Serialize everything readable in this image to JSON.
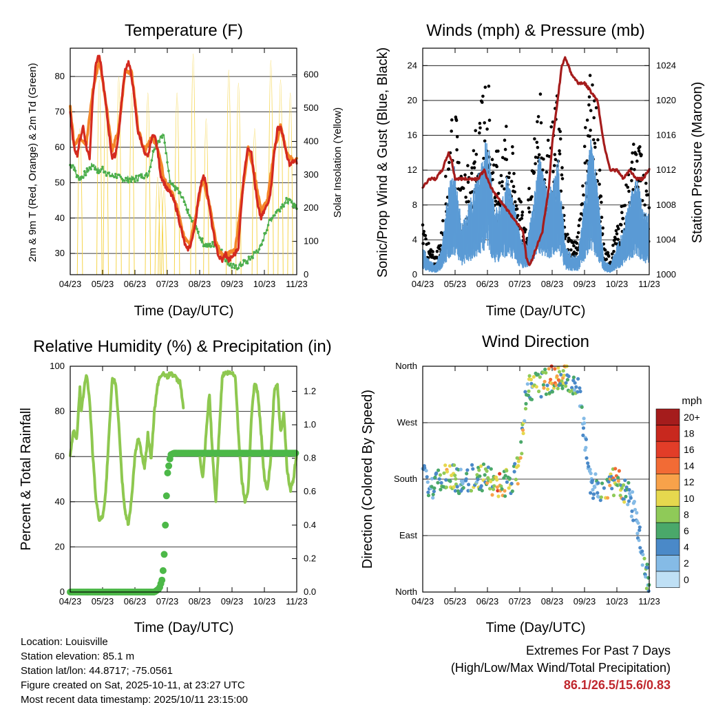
{
  "colors": {
    "temp_red": "#d42a20",
    "temp_orange": "#f4872a",
    "dew_green": "#4cae4c",
    "solar_yellow": "#f5d44a",
    "gust_black": "#000000",
    "wind_blue": "#5b9bd5",
    "pressure_maroon": "#a51c1c",
    "rh_green": "#8ec850",
    "precip_green": "#4cb848",
    "extremes_red": "#c0282e"
  },
  "months": [
    "04/23",
    "05/23",
    "06/23",
    "07/23",
    "08/23",
    "09/23",
    "10/23",
    "11/23"
  ],
  "chart_data": [
    {
      "type": "line",
      "id": "temperature",
      "title": "Temperature (F)",
      "xlabel": "Time (Day/UTC)",
      "ylabel": "2m & 9m T (Red, Orange) & 2m Td (Green)",
      "y2label": "Solar Insolation (Yellow)",
      "ylim": [
        24,
        88
      ],
      "y_ticks": [
        30,
        40,
        50,
        60,
        70,
        80
      ],
      "y2lim": [
        0,
        680
      ],
      "y2_ticks": [
        0,
        100,
        200,
        300,
        400,
        500,
        600
      ],
      "x_ticks": [
        "04/23",
        "05/23",
        "06/23",
        "07/23",
        "08/23",
        "09/23",
        "10/23",
        "11/23"
      ],
      "series": [
        {
          "name": "2m T",
          "color": "#d42a20",
          "x": [
            0,
            0.05,
            0.12,
            0.22,
            0.3,
            0.4,
            0.5,
            0.6,
            0.7,
            0.8,
            0.88,
            0.95,
            1.05,
            1.15,
            1.25,
            1.3,
            1.4,
            1.5,
            1.6,
            1.7,
            1.8,
            1.9,
            2.0,
            2.1,
            2.2,
            2.3,
            2.4,
            2.5,
            2.6,
            2.7,
            2.8,
            2.9,
            3.0,
            3.1,
            3.2,
            3.3,
            3.4,
            3.5,
            3.6,
            3.7,
            3.8,
            3.9,
            4.0,
            4.1,
            4.2,
            4.3,
            4.4,
            4.5,
            4.6,
            4.7,
            4.8,
            4.9,
            5.0,
            5.1,
            5.2,
            5.3,
            5.4,
            5.5,
            5.6,
            5.7,
            5.8,
            5.9,
            6.0,
            6.1,
            6.2,
            6.3,
            6.4,
            6.5,
            6.6,
            6.7,
            6.8,
            6.9,
            7.0
          ],
          "values": [
            70,
            65,
            60,
            58,
            62,
            66,
            60,
            57,
            75,
            84,
            86,
            83,
            76,
            68,
            60,
            57,
            58,
            64,
            74,
            82,
            84,
            80,
            72,
            64,
            62,
            58,
            57,
            62,
            64,
            59,
            52,
            50,
            48,
            47,
            45,
            42,
            38,
            34,
            31,
            32,
            35,
            41,
            48,
            52,
            50,
            43,
            37,
            32,
            29,
            28,
            30,
            28,
            29,
            30,
            32,
            45,
            55,
            60,
            59,
            50,
            43,
            40,
            42,
            44,
            48,
            58,
            65,
            66,
            62,
            57,
            55,
            56,
            56
          ]
        },
        {
          "name": "9m T",
          "color": "#f4872a",
          "x": [
            0,
            0.12,
            0.3,
            0.5,
            0.7,
            0.9,
            1.1,
            1.3,
            1.5,
            1.7,
            1.9,
            2.1,
            2.3,
            2.5,
            2.7,
            2.9,
            3.1,
            3.3,
            3.5,
            3.7,
            3.9,
            4.1,
            4.3,
            4.5,
            4.7,
            4.9,
            5.1,
            5.3,
            5.5,
            5.7,
            5.9,
            6.1,
            6.3,
            6.5,
            6.7,
            6.9,
            7.0
          ],
          "values": [
            71,
            61,
            63,
            61,
            76,
            85,
            73,
            59,
            65,
            82,
            81,
            65,
            59,
            63,
            60,
            51,
            48,
            43,
            35,
            33,
            42,
            51,
            44,
            33,
            29,
            30,
            31,
            46,
            60,
            52,
            42,
            45,
            59,
            66,
            58,
            56,
            57
          ]
        },
        {
          "name": "2m Td",
          "color": "#4cae4c",
          "x": [
            0,
            0.1,
            0.2,
            0.3,
            0.5,
            0.7,
            0.9,
            1.0,
            1.2,
            1.4,
            1.6,
            1.8,
            2.0,
            2.2,
            2.4,
            2.6,
            2.8,
            2.9,
            3.1,
            3.3,
            3.5,
            3.7,
            3.9,
            4.1,
            4.3,
            4.5,
            4.7,
            4.9,
            5.1,
            5.3,
            5.5,
            5.7,
            5.9,
            6.1,
            6.3,
            6.5,
            6.7,
            6.9,
            7.0
          ],
          "values": [
            55,
            55,
            52,
            51,
            53,
            55,
            53,
            54,
            52,
            52,
            51,
            51,
            51,
            52,
            52,
            60,
            63,
            63,
            50,
            48,
            45,
            40,
            37,
            33,
            32,
            33,
            30,
            27,
            26,
            27,
            28,
            30,
            32,
            38,
            41,
            43,
            45,
            44,
            43
          ]
        },
        {
          "name": "Solar",
          "color": "#f5d44a",
          "axis": "y2",
          "peaks_x": [
            0.3,
            0.9,
            1.1,
            1.5,
            1.9,
            2.4,
            2.7,
            2.8,
            2.9,
            3.3,
            3.8,
            4.2,
            4.9,
            5.2,
            5.7,
            6.2,
            6.5,
            6.8
          ],
          "peaks": [
            450,
            600,
            560,
            610,
            560,
            560,
            300,
            280,
            260,
            560,
            680,
            480,
            630,
            590,
            450,
            660,
            600,
            560
          ]
        }
      ]
    },
    {
      "type": "scatter",
      "id": "winds",
      "title": "Winds (mph) & Pressure (mb)",
      "xlabel": "Time (Day/UTC)",
      "ylabel": "Sonic/Prop Wind & Gust (Blue, Black)",
      "y2label": "Station Pressure (Maroon)",
      "ylim": [
        0,
        26
      ],
      "y_ticks": [
        0,
        4,
        8,
        12,
        16,
        20,
        24
      ],
      "y2lim": [
        1000,
        1026
      ],
      "y2_ticks": [
        1000,
        1004,
        1008,
        1012,
        1016,
        1020,
        1024
      ],
      "x_ticks": [
        "04/23",
        "05/23",
        "06/23",
        "07/23",
        "08/23",
        "09/23",
        "10/23",
        "11/23"
      ],
      "series": [
        {
          "name": "Gust",
          "color": "#000000",
          "envelope_x": [
            0,
            0.2,
            0.4,
            0.6,
            0.8,
            1.0,
            1.2,
            1.4,
            1.6,
            1.8,
            2.0,
            2.2,
            2.4,
            2.6,
            2.8,
            3.0,
            3.2,
            3.4,
            3.6,
            3.8,
            4.0,
            4.2,
            4.4,
            4.6,
            4.8,
            5.0,
            5.2,
            5.4,
            5.6,
            5.8,
            6.0,
            6.2,
            6.4,
            6.6,
            6.8,
            7.0
          ],
          "envelope": [
            6,
            3,
            2,
            5,
            15,
            18,
            10,
            12,
            15,
            18,
            23,
            13,
            13,
            16,
            13,
            8,
            6,
            13,
            20,
            14,
            16,
            20,
            5,
            4,
            4,
            15,
            24,
            16,
            3,
            2,
            5,
            8,
            12,
            16,
            12,
            10
          ]
        },
        {
          "name": "Wind",
          "color": "#5b9bd5",
          "envelope_x": [
            0,
            0.2,
            0.4,
            0.6,
            0.8,
            1.0,
            1.2,
            1.4,
            1.6,
            1.8,
            2.0,
            2.2,
            2.4,
            2.6,
            2.8,
            3.0,
            3.2,
            3.4,
            3.6,
            3.8,
            4.0,
            4.2,
            4.4,
            4.6,
            4.8,
            5.0,
            5.2,
            5.4,
            5.6,
            5.8,
            6.0,
            6.2,
            6.4,
            6.6,
            6.8,
            7.0
          ],
          "envelope": [
            3,
            1.5,
            1,
            3,
            9,
            11,
            5,
            7,
            9,
            11,
            15,
            7,
            7,
            10,
            8,
            4,
            3,
            7,
            12,
            9,
            9,
            12,
            3,
            2,
            2,
            8,
            14,
            9,
            1.5,
            1,
            3,
            5,
            8,
            10,
            7,
            6
          ]
        },
        {
          "name": "Pressure",
          "color": "#a51c1c",
          "axis": "y2",
          "x": [
            0,
            0.2,
            0.4,
            0.6,
            0.8,
            0.9,
            1.0,
            1.1,
            1.3,
            1.5,
            1.7,
            1.9,
            2.1,
            2.3,
            2.5,
            2.7,
            2.9,
            3.1,
            3.2,
            3.3,
            3.5,
            3.7,
            3.9,
            4.0,
            4.1,
            4.2,
            4.3,
            4.4,
            4.6,
            4.8,
            5.0,
            5.2,
            5.4,
            5.6,
            5.8,
            6.0,
            6.2,
            6.4,
            6.6,
            6.8,
            7.0
          ],
          "values": [
            1010,
            1011,
            1011,
            1012,
            1014,
            1013,
            1011,
            1011,
            1011,
            1011,
            1011,
            1012,
            1010,
            1009,
            1008,
            1007,
            1006,
            1005,
            1002,
            1001,
            1003,
            1005,
            1010,
            1015,
            1018,
            1021,
            1024,
            1025,
            1023,
            1022,
            1022,
            1021,
            1020,
            1015,
            1012,
            1012,
            1011,
            1012,
            1011,
            1011,
            1012
          ]
        }
      ]
    },
    {
      "type": "line",
      "id": "humidity",
      "title": "Relative Humidity (%) & Precipitation (in)",
      "xlabel": "Time (Day/UTC)",
      "ylabel": "Percent & Total Rainfall",
      "ylim": [
        0,
        100
      ],
      "y_ticks": [
        0,
        20,
        40,
        60,
        80,
        100
      ],
      "y2lim": [
        0,
        1.35
      ],
      "y2_ticks": [
        "0.0",
        "0.2",
        "0.4",
        "0.6",
        "0.8",
        "1.0",
        "1.2"
      ],
      "x_ticks": [
        "04/23",
        "05/23",
        "06/23",
        "07/23",
        "08/23",
        "09/23",
        "10/23",
        "11/23"
      ],
      "series": [
        {
          "name": "RH",
          "color": "#8ec850",
          "x": [
            0,
            0.1,
            0.2,
            0.3,
            0.35,
            0.45,
            0.5,
            0.6,
            0.7,
            0.8,
            0.9,
            1.0,
            1.1,
            1.2,
            1.3,
            1.4,
            1.5,
            1.6,
            1.7,
            1.8,
            1.9,
            2.0,
            2.1,
            2.2,
            2.3,
            2.4,
            2.5,
            2.6,
            2.7,
            2.8,
            2.9,
            3.0,
            3.1,
            3.2,
            3.3,
            3.4,
            3.5,
            3.6,
            3.7,
            3.8,
            3.9,
            4.0,
            4.1,
            4.2,
            4.3,
            4.4,
            4.5,
            4.6,
            4.7,
            4.8,
            4.9,
            5.0,
            5.1,
            5.2,
            5.3,
            5.4,
            5.5,
            5.6,
            5.7,
            5.8,
            5.9,
            6.0,
            6.1,
            6.2,
            6.3,
            6.4,
            6.5,
            6.6,
            6.7,
            6.8,
            6.9,
            7.0
          ],
          "values": [
            60,
            72,
            68,
            90,
            80,
            93,
            97,
            85,
            60,
            40,
            32,
            33,
            45,
            70,
            94,
            93,
            75,
            50,
            35,
            30,
            42,
            60,
            68,
            62,
            55,
            70,
            58,
            80,
            92,
            96,
            97,
            95,
            97,
            96,
            94,
            93,
            81,
            null,
            null,
            null,
            null,
            60,
            50,
            70,
            88,
            60,
            40,
            70,
            96,
            97,
            97,
            97,
            96,
            70,
            50,
            40,
            45,
            78,
            93,
            88,
            70,
            50,
            45,
            60,
            88,
            93,
            70,
            80,
            55,
            45,
            50,
            62
          ]
        },
        {
          "name": "Precip",
          "color": "#4cb848",
          "axis": "y2",
          "x": [
            0,
            1.0,
            2.0,
            2.6,
            2.75,
            2.85,
            2.9,
            2.95,
            3.0,
            3.1,
            3.2,
            4.0,
            5.0,
            6.0,
            7.0
          ],
          "values": [
            0,
            0,
            0,
            0,
            0.02,
            0.08,
            0.2,
            0.45,
            0.7,
            0.82,
            0.83,
            0.83,
            0.83,
            0.83,
            0.83
          ]
        }
      ]
    },
    {
      "type": "scatter",
      "id": "wind_direction",
      "title": "Wind Direction",
      "xlabel": "Time (Day/UTC)",
      "ylabel": "Direction (Colored By Speed)",
      "ylim": [
        0,
        360
      ],
      "y_ticks": [
        "North",
        "East",
        "South",
        "West",
        "North"
      ],
      "x_ticks": [
        "04/23",
        "05/23",
        "06/23",
        "07/23",
        "08/23",
        "09/23",
        "10/23",
        "11/23"
      ],
      "legend": {
        "unit": "mph",
        "labels": [
          "20+",
          "18",
          "16",
          "14",
          "12",
          "10",
          "8",
          "6",
          "4",
          "2",
          "0"
        ],
        "colors": [
          "#a51c1c",
          "#c8281e",
          "#e23d28",
          "#f26b35",
          "#f8a24a",
          "#e6d84e",
          "#8fca58",
          "#4aa86a",
          "#4a89c8",
          "#85bbe6",
          "#bfe0f5"
        ]
      },
      "clusters_x": [
        0,
        0.4,
        0.8,
        1.2,
        1.6,
        2.0,
        2.4,
        2.8,
        3.0,
        3.2,
        3.6,
        4.0,
        4.4,
        4.8,
        5.0,
        5.2,
        5.6,
        6.0,
        6.4,
        6.6,
        6.8,
        6.95
      ],
      "clusters_dir": [
        180,
        170,
        190,
        175,
        185,
        180,
        170,
        180,
        200,
        320,
        330,
        340,
        345,
        330,
        250,
        170,
        165,
        180,
        150,
        120,
        60,
        20
      ],
      "clusters_speed": [
        4,
        6,
        12,
        5,
        8,
        10,
        14,
        8,
        12,
        8,
        10,
        14,
        10,
        6,
        4,
        3,
        8,
        14,
        4,
        3,
        6,
        8
      ]
    }
  ],
  "extremes": {
    "title": "Extremes For Past 7 Days",
    "subtitle": "(High/Low/Max Wind/Total Precipitation)",
    "values": "86.1/26.5/15.6/0.83"
  },
  "footer": {
    "location": "Location: Louisville",
    "elevation": "Station elevation: 85.1 m",
    "latlon": "Station lat/lon: 44.8717; -75.0561",
    "created": "Figure created on Sat, 2025-10-11, at 23:27 UTC",
    "recent": "Most recent data timestamp: 2025/10/11 23:15:00"
  }
}
